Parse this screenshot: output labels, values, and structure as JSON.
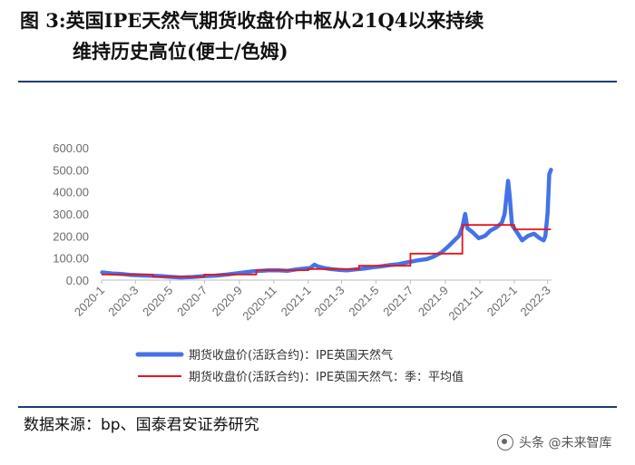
{
  "title_line1": "图  3:英国IPE天然气期货收盘价中枢从21Q4以来持续",
  "title_line2": "维持历史高位(便士/色姆)",
  "source": "数据来源：bp、国泰君安证券研究",
  "watermark": "头条 @未来智库",
  "colors": {
    "series_daily": "#4472e8",
    "series_quarterly": "#e8141b",
    "rule": "#1f3b73"
  },
  "chart_data": {
    "type": "line",
    "title": "",
    "xlabel": "",
    "ylabel": "",
    "ylim": [
      0,
      600
    ],
    "yticks": [
      "0.00",
      "100.00",
      "200.00",
      "300.00",
      "400.00",
      "500.00",
      "600.00"
    ],
    "xticks": [
      "2020-1",
      "2020-3",
      "2020-5",
      "2020-7",
      "2020-9",
      "2020-11",
      "2021-1",
      "2021-3",
      "2021-5",
      "2021-7",
      "2021-9",
      "2021-11",
      "2022-1",
      "2022-3"
    ],
    "x_range": [
      "2020-01-01",
      "2022-03-01"
    ],
    "legend_position": "bottom",
    "series": [
      {
        "name": "期货收盘价(活跃合约)：IPE英国天然气",
        "style": "thick-line",
        "points": [
          [
            "2020-01-02",
            35
          ],
          [
            "2020-01-20",
            30
          ],
          [
            "2020-02-05",
            28
          ],
          [
            "2020-02-20",
            24
          ],
          [
            "2020-03-05",
            22
          ],
          [
            "2020-03-25",
            20
          ],
          [
            "2020-04-15",
            18
          ],
          [
            "2020-05-01",
            15
          ],
          [
            "2020-05-20",
            12
          ],
          [
            "2020-06-10",
            14
          ],
          [
            "2020-07-01",
            18
          ],
          [
            "2020-07-20",
            20
          ],
          [
            "2020-08-10",
            25
          ],
          [
            "2020-08-25",
            30
          ],
          [
            "2020-09-10",
            35
          ],
          [
            "2020-09-25",
            40
          ],
          [
            "2020-10-10",
            42
          ],
          [
            "2020-10-25",
            45
          ],
          [
            "2020-11-10",
            44
          ],
          [
            "2020-11-25",
            42
          ],
          [
            "2020-12-10",
            48
          ],
          [
            "2020-12-25",
            52
          ],
          [
            "2021-01-05",
            55
          ],
          [
            "2021-01-12",
            70
          ],
          [
            "2021-01-18",
            62
          ],
          [
            "2021-01-28",
            55
          ],
          [
            "2021-02-10",
            50
          ],
          [
            "2021-02-25",
            46
          ],
          [
            "2021-03-10",
            44
          ],
          [
            "2021-03-25",
            48
          ],
          [
            "2021-04-10",
            52
          ],
          [
            "2021-04-25",
            58
          ],
          [
            "2021-05-10",
            62
          ],
          [
            "2021-05-25",
            68
          ],
          [
            "2021-06-10",
            72
          ],
          [
            "2021-06-25",
            80
          ],
          [
            "2021-07-05",
            85
          ],
          [
            "2021-07-15",
            90
          ],
          [
            "2021-07-30",
            95
          ],
          [
            "2021-08-10",
            105
          ],
          [
            "2021-08-25",
            125
          ],
          [
            "2021-09-05",
            150
          ],
          [
            "2021-09-15",
            175
          ],
          [
            "2021-09-25",
            200
          ],
          [
            "2021-10-01",
            240
          ],
          [
            "2021-10-06",
            300
          ],
          [
            "2021-10-10",
            235
          ],
          [
            "2021-10-20",
            215
          ],
          [
            "2021-10-30",
            190
          ],
          [
            "2021-11-10",
            200
          ],
          [
            "2021-11-20",
            225
          ],
          [
            "2021-12-01",
            240
          ],
          [
            "2021-12-10",
            260
          ],
          [
            "2021-12-15",
            300
          ],
          [
            "2021-12-21",
            450
          ],
          [
            "2021-12-24",
            380
          ],
          [
            "2021-12-28",
            250
          ],
          [
            "2022-01-05",
            220
          ],
          [
            "2022-01-15",
            180
          ],
          [
            "2022-01-25",
            200
          ],
          [
            "2022-02-05",
            210
          ],
          [
            "2022-02-15",
            190
          ],
          [
            "2022-02-22",
            180
          ],
          [
            "2022-02-25",
            200
          ],
          [
            "2022-03-01",
            300
          ],
          [
            "2022-03-04",
            480
          ],
          [
            "2022-03-07",
            500
          ]
        ]
      },
      {
        "name": "期货收盘价(活跃合约)：IPE英国天然气：季：平均值",
        "style": "step",
        "steps": [
          [
            "2020-01-01",
            "2020-04-01",
            25
          ],
          [
            "2020-04-01",
            "2020-07-01",
            15
          ],
          [
            "2020-07-01",
            "2020-10-01",
            25
          ],
          [
            "2020-10-01",
            "2021-01-01",
            45
          ],
          [
            "2021-01-01",
            "2021-04-01",
            50
          ],
          [
            "2021-04-01",
            "2021-07-01",
            65
          ],
          [
            "2021-07-01",
            "2021-10-01",
            120
          ],
          [
            "2021-10-01",
            "2022-01-01",
            250
          ],
          [
            "2022-01-01",
            "2022-03-07",
            230
          ]
        ]
      }
    ]
  }
}
